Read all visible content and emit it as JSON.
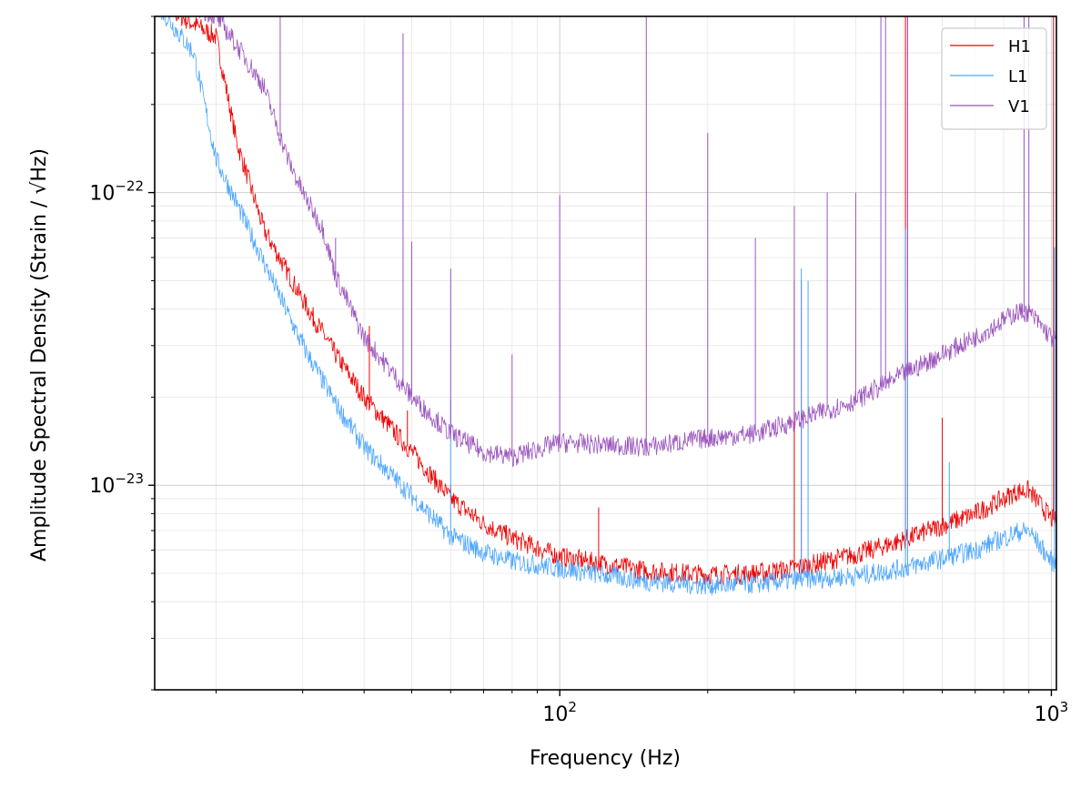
{
  "chart_data": {
    "type": "line",
    "title": "",
    "xlabel": "Frequency (Hz)",
    "ylabel": "Amplitude Spectral Density (Strain / √Hz)",
    "xscale": "log",
    "yscale": "log",
    "xlim": [
      15,
      1024
    ],
    "ylim": [
      2e-24,
      4e-22
    ],
    "grid": true,
    "legend": "top-right",
    "x_ticks": [
      {
        "value": 100,
        "base": "10",
        "exp": "2"
      },
      {
        "value": 1000,
        "base": "10",
        "exp": "3"
      }
    ],
    "y_ticks": [
      {
        "value": 1e-23,
        "base": "10",
        "exp": "−23"
      },
      {
        "value": 1e-22,
        "base": "10",
        "exp": "−22"
      }
    ],
    "x_minor_ticks": [
      20,
      30,
      40,
      50,
      60,
      70,
      80,
      90,
      200,
      300,
      400,
      500,
      600,
      700,
      800,
      900
    ],
    "y_minor_ticks": [
      2e-24,
      3e-24,
      4e-24,
      5e-24,
      6e-24,
      7e-24,
      8e-24,
      9e-24,
      2e-23,
      3e-23,
      4e-23,
      5e-23,
      6e-23,
      7e-23,
      8e-23,
      9e-23,
      2e-22,
      3e-22,
      4e-22
    ],
    "series": [
      {
        "name": "H1",
        "color": "#ee0000",
        "curve": [
          [
            15,
            4.5e-22
          ],
          [
            20,
            3.4e-22
          ],
          [
            22,
            1.5e-22
          ],
          [
            25,
            7.5e-23
          ],
          [
            30,
            4.3e-23
          ],
          [
            35,
            2.8e-23
          ],
          [
            40,
            2e-23
          ],
          [
            50,
            1.3e-23
          ],
          [
            60,
            9e-24
          ],
          [
            70,
            7.4e-24
          ],
          [
            80,
            6.6e-24
          ],
          [
            100,
            5.7e-24
          ],
          [
            150,
            5.1e-24
          ],
          [
            200,
            4.95e-24
          ],
          [
            250,
            5e-24
          ],
          [
            300,
            5.2e-24
          ],
          [
            400,
            5.8e-24
          ],
          [
            500,
            6.5e-24
          ],
          [
            700,
            8e-24
          ],
          [
            850,
            9.5e-24
          ],
          [
            900,
            9.6e-24
          ],
          [
            1000,
            7.7e-24
          ],
          [
            1024,
            7.5e-24
          ]
        ],
        "lines": [
          [
            27.5,
            5.8e-23
          ],
          [
            31.5,
            3.5e-23
          ],
          [
            36,
            2.5e-23
          ],
          [
            41,
            3.5e-23
          ],
          [
            45,
            1.7e-23
          ],
          [
            49,
            1.8e-23
          ],
          [
            60,
            1e-23
          ],
          [
            120,
            8.4e-24
          ],
          [
            300,
            5e-23
          ],
          [
            310,
            5e-23
          ],
          [
            505,
            8e-22
          ],
          [
            510,
            8e-22
          ],
          [
            600,
            1.7e-23
          ],
          [
            1010,
            8e-22
          ]
        ]
      },
      {
        "name": "L1",
        "color": "#4da6ff",
        "curve": [
          [
            15,
            4.5e-22
          ],
          [
            18,
            3e-22
          ],
          [
            20,
            1.3e-22
          ],
          [
            25,
            5.8e-23
          ],
          [
            30,
            3e-23
          ],
          [
            35,
            1.9e-23
          ],
          [
            40,
            1.35e-23
          ],
          [
            50,
            9.2e-24
          ],
          [
            60,
            6.7e-24
          ],
          [
            70,
            5.9e-24
          ],
          [
            80,
            5.5e-24
          ],
          [
            100,
            5.2e-24
          ],
          [
            150,
            4.7e-24
          ],
          [
            200,
            4.55e-24
          ],
          [
            250,
            4.6e-24
          ],
          [
            300,
            4.75e-24
          ],
          [
            400,
            4.9e-24
          ],
          [
            500,
            5.2e-24
          ],
          [
            700,
            6e-24
          ],
          [
            850,
            6.9e-24
          ],
          [
            900,
            7e-24
          ],
          [
            1000,
            5.5e-24
          ],
          [
            1024,
            5.4e-24
          ]
        ],
        "lines": [
          [
            30,
            3.3e-23
          ],
          [
            60,
            1.95e-23
          ],
          [
            310,
            5.5e-23
          ],
          [
            320,
            5e-23
          ],
          [
            505,
            7.5e-23
          ],
          [
            510,
            3e-23
          ],
          [
            620,
            1.2e-23
          ],
          [
            1015,
            6.5e-23
          ]
        ]
      },
      {
        "name": "V1",
        "color": "#9b55bd",
        "curve": [
          [
            15,
            5e-22
          ],
          [
            20,
            4e-22
          ],
          [
            22,
            3.2e-22
          ],
          [
            25,
            2.3e-22
          ],
          [
            28,
            1.3e-22
          ],
          [
            30,
            1e-22
          ],
          [
            33,
            7.5e-23
          ],
          [
            35,
            5.2e-23
          ],
          [
            40,
            3.2e-23
          ],
          [
            45,
            2.5e-23
          ],
          [
            50,
            2e-23
          ],
          [
            60,
            1.5e-23
          ],
          [
            70,
            1.3e-23
          ],
          [
            80,
            1.25e-23
          ],
          [
            100,
            1.4e-23
          ],
          [
            150,
            1.35e-23
          ],
          [
            200,
            1.45e-23
          ],
          [
            250,
            1.5e-23
          ],
          [
            300,
            1.65e-23
          ],
          [
            400,
            1.95e-23
          ],
          [
            500,
            2.4e-23
          ],
          [
            700,
            3.2e-23
          ],
          [
            850,
            3.9e-23
          ],
          [
            900,
            3.9e-23
          ],
          [
            1000,
            3.2e-23
          ],
          [
            1024,
            3.1e-23
          ]
        ],
        "lines": [
          [
            27,
            4e-22
          ],
          [
            35,
            7e-23
          ],
          [
            48,
            3.5e-22
          ],
          [
            50,
            6.8e-23
          ],
          [
            60,
            5.5e-23
          ],
          [
            80,
            2.8e-23
          ],
          [
            100,
            9.8e-23
          ],
          [
            150,
            4e-22
          ],
          [
            200,
            1.6e-22
          ],
          [
            250,
            7e-23
          ],
          [
            300,
            9e-23
          ],
          [
            350,
            1e-22
          ],
          [
            400,
            1e-22
          ],
          [
            450,
            4e-22
          ],
          [
            460,
            4e-22
          ],
          [
            510,
            4e-22
          ],
          [
            880,
            4e-22
          ],
          [
            900,
            4e-22
          ]
        ]
      }
    ]
  }
}
